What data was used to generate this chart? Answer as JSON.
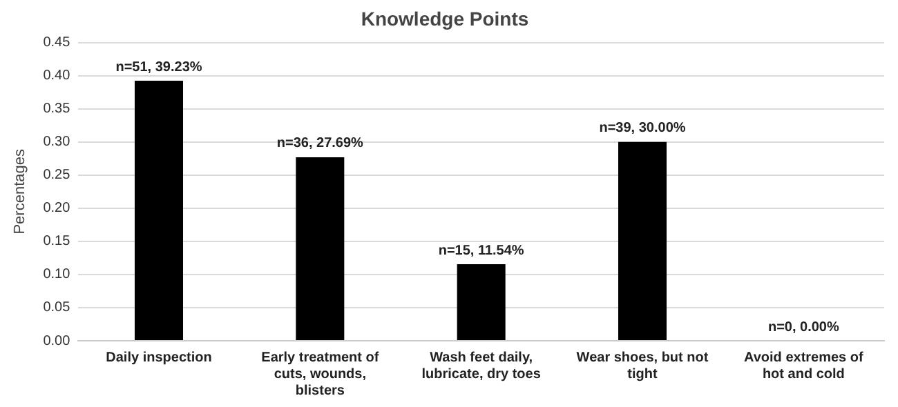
{
  "chart_data": {
    "type": "bar",
    "title": "Knowledge Points",
    "ylabel": "Percentages",
    "categories": [
      "Daily inspection",
      "Early treatment of cuts, wounds, blisters",
      "Wash feet daily, lubricate, dry toes",
      "Wear shoes, but not tight",
      "Avoid extremes of hot and cold"
    ],
    "values": [
      0.3923,
      0.2769,
      0.1154,
      0.3,
      0
    ],
    "value_labels": [
      "n=51, 39.23%",
      "n=36, 27.69%",
      "n=15, 11.54%",
      "n=39, 30.00%",
      "n=0, 0.00%"
    ],
    "color": "#000000",
    "ylim": [
      0,
      0.45
    ],
    "yticks": [
      {
        "value": 0,
        "label": "0.00"
      },
      {
        "value": 0.05,
        "label": "0.05"
      },
      {
        "value": 0.1,
        "label": "0.10"
      },
      {
        "value": 0.15,
        "label": "0.15"
      },
      {
        "value": 0.2,
        "label": "0.20"
      },
      {
        "value": 0.25,
        "label": "0.25"
      },
      {
        "value": 0.3,
        "label": "0.30"
      },
      {
        "value": 0.35,
        "label": "0.35"
      },
      {
        "value": 0.4,
        "label": "0.40"
      },
      {
        "value": 0.45,
        "label": "0.45"
      }
    ],
    "grid": "y"
  }
}
